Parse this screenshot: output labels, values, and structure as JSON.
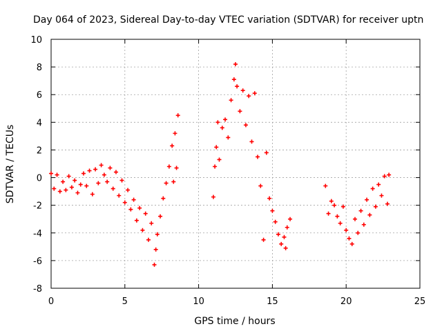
{
  "chart_data": {
    "type": "scatter",
    "title": "Day 064 of 2023, Sidereal Day-to-day VTEC variation (SDTVAR) for receiver uptn",
    "xlabel": "GPS time / hours",
    "ylabel": "SDTVAR / TECUs",
    "xlim": [
      0,
      25
    ],
    "ylim": [
      -8,
      10
    ],
    "x_ticks": [
      0,
      5,
      10,
      15,
      20,
      25
    ],
    "y_ticks": [
      -8,
      -6,
      -4,
      -2,
      0,
      2,
      4,
      6,
      8,
      10
    ],
    "grid": true,
    "marker": "+",
    "series": [
      {
        "name": "SDTVAR",
        "color": "#ff0000",
        "points": [
          [
            0.0,
            0.3
          ],
          [
            0.2,
            -0.8
          ],
          [
            0.4,
            0.2
          ],
          [
            0.6,
            -1.0
          ],
          [
            0.8,
            -0.3
          ],
          [
            1.0,
            -0.9
          ],
          [
            1.2,
            0.1
          ],
          [
            1.4,
            -0.7
          ],
          [
            1.6,
            -0.2
          ],
          [
            1.8,
            -1.1
          ],
          [
            2.0,
            -0.5
          ],
          [
            2.2,
            0.3
          ],
          [
            2.4,
            -0.6
          ],
          [
            2.6,
            0.5
          ],
          [
            2.8,
            -1.2
          ],
          [
            3.0,
            0.6
          ],
          [
            3.2,
            -0.4
          ],
          [
            3.4,
            0.9
          ],
          [
            3.6,
            0.2
          ],
          [
            3.8,
            -0.3
          ],
          [
            4.0,
            0.7
          ],
          [
            4.2,
            -0.8
          ],
          [
            4.4,
            0.4
          ],
          [
            4.6,
            -1.3
          ],
          [
            4.8,
            -0.2
          ],
          [
            5.0,
            -1.8
          ],
          [
            5.2,
            -0.9
          ],
          [
            5.4,
            -2.3
          ],
          [
            5.6,
            -1.6
          ],
          [
            5.8,
            -3.1
          ],
          [
            6.0,
            -2.2
          ],
          [
            6.2,
            -3.8
          ],
          [
            6.4,
            -2.6
          ],
          [
            6.6,
            -4.5
          ],
          [
            6.8,
            -3.3
          ],
          [
            7.0,
            -6.3
          ],
          [
            7.1,
            -5.2
          ],
          [
            7.2,
            -4.1
          ],
          [
            7.4,
            -2.8
          ],
          [
            7.6,
            -1.5
          ],
          [
            7.8,
            -0.4
          ],
          [
            8.0,
            0.8
          ],
          [
            8.2,
            2.3
          ],
          [
            8.4,
            3.2
          ],
          [
            8.6,
            4.5
          ],
          [
            8.5,
            0.7
          ],
          [
            8.3,
            -0.3
          ],
          [
            11.0,
            -1.4
          ],
          [
            11.1,
            0.8
          ],
          [
            11.2,
            2.2
          ],
          [
            11.3,
            4.0
          ],
          [
            11.4,
            1.3
          ],
          [
            11.6,
            3.6
          ],
          [
            11.8,
            4.2
          ],
          [
            12.0,
            2.9
          ],
          [
            12.2,
            5.6
          ],
          [
            12.4,
            7.1
          ],
          [
            12.5,
            8.2
          ],
          [
            12.6,
            6.6
          ],
          [
            12.8,
            4.8
          ],
          [
            13.0,
            6.3
          ],
          [
            13.2,
            3.8
          ],
          [
            13.4,
            5.9
          ],
          [
            13.6,
            2.6
          ],
          [
            13.8,
            6.1
          ],
          [
            14.0,
            1.5
          ],
          [
            14.2,
            -0.6
          ],
          [
            14.4,
            -4.5
          ],
          [
            14.6,
            1.8
          ],
          [
            14.8,
            -1.5
          ],
          [
            15.0,
            -2.4
          ],
          [
            15.2,
            -3.2
          ],
          [
            15.4,
            -4.1
          ],
          [
            15.6,
            -4.8
          ],
          [
            15.8,
            -4.3
          ],
          [
            16.0,
            -3.6
          ],
          [
            16.2,
            -3.0
          ],
          [
            15.9,
            -5.1
          ],
          [
            18.6,
            -0.6
          ],
          [
            18.8,
            -2.6
          ],
          [
            19.0,
            -1.7
          ],
          [
            19.2,
            -2.0
          ],
          [
            19.4,
            -2.8
          ],
          [
            19.6,
            -3.3
          ],
          [
            19.8,
            -2.1
          ],
          [
            20.0,
            -3.8
          ],
          [
            20.2,
            -4.4
          ],
          [
            20.4,
            -4.8
          ],
          [
            20.6,
            -3.0
          ],
          [
            20.8,
            -4.0
          ],
          [
            21.0,
            -2.4
          ],
          [
            21.2,
            -3.4
          ],
          [
            21.4,
            -1.6
          ],
          [
            21.6,
            -2.7
          ],
          [
            21.8,
            -0.8
          ],
          [
            22.0,
            -2.1
          ],
          [
            22.2,
            -0.5
          ],
          [
            22.4,
            -1.3
          ],
          [
            22.6,
            0.1
          ],
          [
            22.8,
            -1.9
          ],
          [
            22.9,
            0.2
          ]
        ]
      }
    ]
  }
}
